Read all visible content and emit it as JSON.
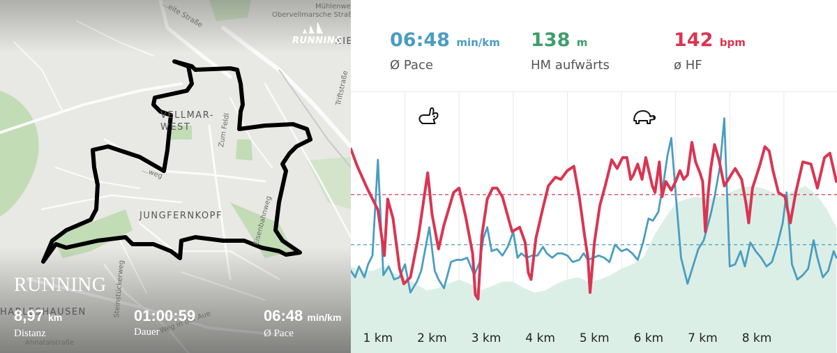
{
  "map": {
    "street_labels": [
      "Mühlenweg",
      "Obervellmarsche Straße",
      "Zum Feldl",
      "Eisenbahnweg",
      "Triftstraße",
      "Steinstückerweg",
      "Weg in der Aue",
      "Ahnatalstraße",
      "...weg",
      "...eite Straße"
    ],
    "district_labels": [
      "VELLMAR-\nWEST",
      "JUNGFERNKOPF",
      "HARLESHAUSEN"
    ],
    "edge_text": "NIE"
  },
  "brand": {
    "logo_icon": "adidas-running-logo-icon",
    "text": "RUNNING"
  },
  "overlay": {
    "title": "RUNNING",
    "stats": [
      {
        "value": "8,97",
        "unit": "km",
        "label": "Distanz"
      },
      {
        "value": "01:00:59",
        "unit": "",
        "label": "Dauer"
      },
      {
        "value": "06:48",
        "unit": "min/km",
        "label": "Ø Pace"
      }
    ]
  },
  "metrics": [
    {
      "value": "06:48",
      "unit": "min/km",
      "label": "Ø Pace",
      "color": "#4a9dc1"
    },
    {
      "value": "138",
      "unit": "m",
      "label": "HM aufwärts",
      "color": "#3f9d6a"
    },
    {
      "value": "142",
      "unit": "bpm",
      "label": "ø HF",
      "color": "#d93552"
    }
  ],
  "chart_data": {
    "type": "line",
    "x_label": "",
    "x_ticks": [
      "1 km",
      "2 km",
      "3 km",
      "4 km",
      "5 km",
      "6 km",
      "7 km",
      "8 km"
    ],
    "x_range_km": [
      0,
      8.97
    ],
    "icons": [
      {
        "name": "rabbit-icon",
        "km": 1.45
      },
      {
        "name": "turtle-icon",
        "km": 5.4
      }
    ],
    "colors": {
      "pace": "#4a9dc1",
      "heart_rate": "#d93552",
      "elevation_fill": "#dcefe6"
    },
    "series": [
      {
        "name": "",
        "key": "heart_rate",
        "y_range": [
          0,
          100
        ],
        "average": 59,
        "points": [
          [
            0.0,
            80
          ],
          [
            0.12,
            72
          ],
          [
            0.3,
            62
          ],
          [
            0.5,
            52
          ],
          [
            0.62,
            31
          ],
          [
            0.68,
            57
          ],
          [
            0.78,
            48
          ],
          [
            0.9,
            25
          ],
          [
            0.98,
            18
          ],
          [
            1.1,
            21
          ],
          [
            1.25,
            40
          ],
          [
            1.42,
            69
          ],
          [
            1.5,
            50
          ],
          [
            1.62,
            34
          ],
          [
            1.72,
            45
          ],
          [
            1.9,
            60
          ],
          [
            2.0,
            62
          ],
          [
            2.12,
            49
          ],
          [
            2.25,
            32
          ],
          [
            2.3,
            13
          ],
          [
            2.35,
            11
          ],
          [
            2.42,
            40
          ],
          [
            2.52,
            57
          ],
          [
            2.62,
            62
          ],
          [
            2.7,
            62
          ],
          [
            2.8,
            58
          ],
          [
            2.98,
            42
          ],
          [
            3.12,
            44
          ],
          [
            3.22,
            37
          ],
          [
            3.28,
            23
          ],
          [
            3.33,
            20
          ],
          [
            3.42,
            39
          ],
          [
            3.55,
            53
          ],
          [
            3.65,
            63
          ],
          [
            3.78,
            67
          ],
          [
            3.88,
            66
          ],
          [
            4.0,
            70
          ],
          [
            4.12,
            72
          ],
          [
            4.22,
            58
          ],
          [
            4.32,
            40
          ],
          [
            4.38,
            30
          ],
          [
            4.42,
            14
          ],
          [
            4.5,
            37
          ],
          [
            4.6,
            54
          ],
          [
            4.7,
            63
          ],
          [
            4.82,
            75
          ],
          [
            4.92,
            71
          ],
          [
            5.02,
            76
          ],
          [
            5.1,
            76
          ],
          [
            5.17,
            66
          ],
          [
            5.22,
            68
          ],
          [
            5.3,
            73
          ],
          [
            5.38,
            66
          ],
          [
            5.45,
            76
          ],
          [
            5.57,
            63
          ],
          [
            5.62,
            60
          ],
          [
            5.7,
            74
          ],
          [
            5.75,
            58
          ],
          [
            5.82,
            65
          ],
          [
            5.92,
            61
          ],
          [
            6.0,
            65
          ],
          [
            6.08,
            70
          ],
          [
            6.15,
            66
          ],
          [
            6.22,
            68
          ],
          [
            6.3,
            83
          ],
          [
            6.37,
            74
          ],
          [
            6.45,
            69
          ],
          [
            6.5,
            65
          ],
          [
            6.55,
            42
          ],
          [
            6.6,
            59
          ],
          [
            6.65,
            71
          ],
          [
            6.72,
            82
          ],
          [
            6.8,
            75
          ],
          [
            6.9,
            63
          ],
          [
            7.0,
            67
          ],
          [
            7.1,
            71
          ],
          [
            7.22,
            66
          ],
          [
            7.3,
            55
          ],
          [
            7.35,
            46
          ],
          [
            7.42,
            62
          ],
          [
            7.55,
            72
          ],
          [
            7.65,
            81
          ],
          [
            7.73,
            79
          ],
          [
            7.8,
            70
          ],
          [
            7.9,
            60
          ],
          [
            8.02,
            58
          ],
          [
            8.12,
            46
          ],
          [
            8.22,
            60
          ],
          [
            8.35,
            74
          ],
          [
            8.5,
            73
          ],
          [
            8.62,
            62
          ],
          [
            8.75,
            76
          ],
          [
            8.85,
            78
          ],
          [
            8.97,
            65
          ]
        ]
      },
      {
        "name": "",
        "key": "pace",
        "y_range": [
          0,
          100
        ],
        "average": 36,
        "points": [
          [
            0.0,
            24
          ],
          [
            0.08,
            21
          ],
          [
            0.15,
            26
          ],
          [
            0.25,
            21
          ],
          [
            0.32,
            27
          ],
          [
            0.4,
            31
          ],
          [
            0.5,
            75
          ],
          [
            0.6,
            22
          ],
          [
            0.7,
            26
          ],
          [
            0.8,
            20
          ],
          [
            0.9,
            21
          ],
          [
            1.0,
            27
          ],
          [
            1.1,
            14
          ],
          [
            1.22,
            19
          ],
          [
            1.3,
            24
          ],
          [
            1.45,
            44
          ],
          [
            1.55,
            24
          ],
          [
            1.62,
            20
          ],
          [
            1.72,
            16
          ],
          [
            1.85,
            28
          ],
          [
            1.95,
            29
          ],
          [
            2.05,
            29
          ],
          [
            2.15,
            30
          ],
          [
            2.28,
            22
          ],
          [
            2.38,
            28
          ],
          [
            2.45,
            39
          ],
          [
            2.52,
            44
          ],
          [
            2.6,
            33
          ],
          [
            2.7,
            34
          ],
          [
            2.8,
            31
          ],
          [
            2.9,
            35
          ],
          [
            3.0,
            42
          ],
          [
            3.08,
            30
          ],
          [
            3.15,
            32
          ],
          [
            3.25,
            30
          ],
          [
            3.35,
            31
          ],
          [
            3.45,
            31
          ],
          [
            3.55,
            35
          ],
          [
            3.62,
            32
          ],
          [
            3.72,
            30
          ],
          [
            3.82,
            32
          ],
          [
            3.9,
            32
          ],
          [
            4.0,
            31
          ],
          [
            4.1,
            28
          ],
          [
            4.22,
            29
          ],
          [
            4.3,
            32
          ],
          [
            4.38,
            29
          ],
          [
            4.48,
            30
          ],
          [
            4.58,
            31
          ],
          [
            4.68,
            30
          ],
          [
            4.78,
            28
          ],
          [
            4.88,
            36
          ],
          [
            5.0,
            33
          ],
          [
            5.1,
            34
          ],
          [
            5.2,
            32
          ],
          [
            5.3,
            29
          ],
          [
            5.4,
            37
          ],
          [
            5.5,
            48
          ],
          [
            5.58,
            47
          ],
          [
            5.68,
            51
          ],
          [
            5.78,
            65
          ],
          [
            5.85,
            77
          ],
          [
            5.92,
            85
          ],
          [
            6.0,
            60
          ],
          [
            6.1,
            30
          ],
          [
            6.22,
            18
          ],
          [
            6.32,
            26
          ],
          [
            6.42,
            34
          ],
          [
            6.52,
            38
          ],
          [
            6.65,
            50
          ],
          [
            6.72,
            58
          ],
          [
            6.82,
            72
          ],
          [
            6.9,
            94
          ],
          [
            7.0,
            26
          ],
          [
            7.1,
            27
          ],
          [
            7.2,
            33
          ],
          [
            7.28,
            26
          ],
          [
            7.38,
            37
          ],
          [
            7.48,
            33
          ],
          [
            7.58,
            30
          ],
          [
            7.68,
            26
          ],
          [
            7.78,
            28
          ],
          [
            7.88,
            36
          ],
          [
            7.98,
            46
          ],
          [
            8.05,
            60
          ],
          [
            8.15,
            27
          ],
          [
            8.25,
            20
          ],
          [
            8.35,
            22
          ],
          [
            8.45,
            25
          ],
          [
            8.55,
            38
          ],
          [
            8.62,
            30
          ],
          [
            8.72,
            21
          ],
          [
            8.82,
            24
          ],
          [
            8.92,
            33
          ],
          [
            8.97,
            30
          ]
        ]
      },
      {
        "name": "",
        "key": "elevation",
        "y_range": [
          0,
          100
        ],
        "points": [
          [
            0.0,
            26
          ],
          [
            0.2,
            24
          ],
          [
            0.4,
            24
          ],
          [
            0.6,
            26
          ],
          [
            0.8,
            23
          ],
          [
            1.0,
            21
          ],
          [
            1.2,
            18
          ],
          [
            1.4,
            15
          ],
          [
            1.6,
            16
          ],
          [
            1.8,
            18
          ],
          [
            2.0,
            20
          ],
          [
            2.2,
            18
          ],
          [
            2.4,
            15
          ],
          [
            2.6,
            17
          ],
          [
            2.8,
            19
          ],
          [
            3.0,
            19
          ],
          [
            3.2,
            16
          ],
          [
            3.4,
            14
          ],
          [
            3.6,
            15
          ],
          [
            3.8,
            18
          ],
          [
            4.0,
            20
          ],
          [
            4.2,
            21
          ],
          [
            4.4,
            19
          ],
          [
            4.6,
            20
          ],
          [
            4.8,
            22
          ],
          [
            5.0,
            25
          ],
          [
            5.2,
            27
          ],
          [
            5.4,
            30
          ],
          [
            5.6,
            40
          ],
          [
            5.8,
            48
          ],
          [
            6.0,
            55
          ],
          [
            6.2,
            57
          ],
          [
            6.4,
            58
          ],
          [
            6.6,
            57
          ],
          [
            6.8,
            58
          ],
          [
            7.0,
            60
          ],
          [
            7.2,
            62
          ],
          [
            7.4,
            63
          ],
          [
            7.6,
            62
          ],
          [
            7.8,
            60
          ],
          [
            8.0,
            58
          ],
          [
            8.2,
            61
          ],
          [
            8.4,
            63
          ],
          [
            8.6,
            59
          ],
          [
            8.8,
            52
          ],
          [
            8.97,
            44
          ]
        ]
      }
    ]
  }
}
